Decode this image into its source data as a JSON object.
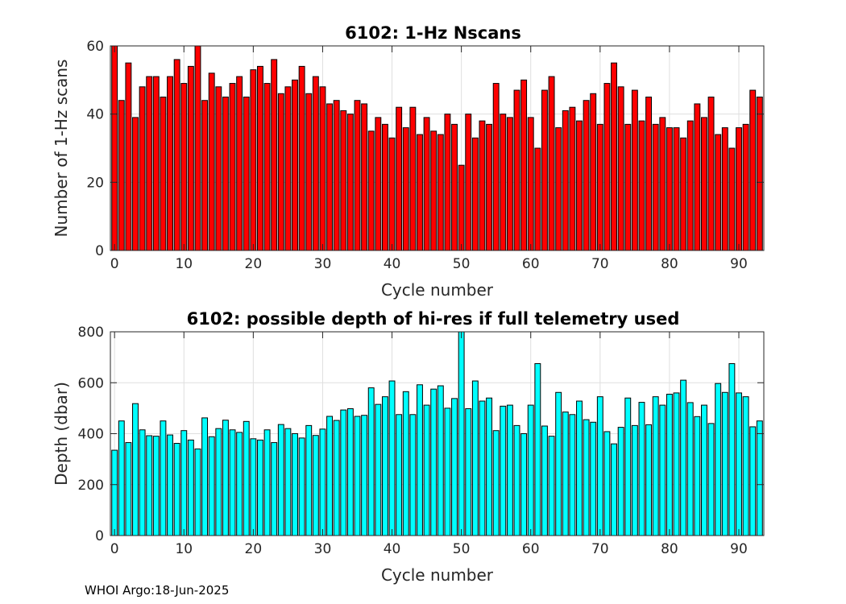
{
  "footer": "WHOI Argo:18-Jun-2025",
  "chart_data": [
    {
      "type": "bar",
      "title": "6102: 1-Hz Nscans",
      "xlabel": "Cycle number",
      "ylabel": "Number of 1-Hz scans",
      "color": "#ff0000",
      "xlim": [
        -0.6,
        93.6
      ],
      "ylim": [
        0,
        60
      ],
      "xticks": [
        0,
        10,
        20,
        30,
        40,
        50,
        60,
        70,
        80,
        90
      ],
      "yticks": [
        0,
        20,
        40,
        60
      ],
      "grid": true,
      "x_start": 0,
      "values": [
        60,
        44,
        55,
        39,
        48,
        51,
        51,
        45,
        51,
        56,
        49,
        54,
        60,
        44,
        52,
        48,
        45,
        49,
        51,
        45,
        53,
        54,
        49,
        56,
        46,
        48,
        50,
        54,
        46,
        51,
        48,
        43,
        44,
        41,
        40,
        44,
        43,
        35,
        39,
        37,
        33,
        42,
        36,
        42,
        34,
        39,
        35,
        34,
        40,
        37,
        25,
        40,
        33,
        38,
        37,
        49,
        40,
        39,
        47,
        50,
        39,
        30,
        47,
        51,
        36,
        41,
        42,
        38,
        44,
        46,
        37,
        49,
        55,
        48,
        37,
        47,
        38,
        45,
        37,
        39,
        36,
        36,
        33,
        38,
        43,
        39,
        45,
        34,
        36,
        30,
        36,
        37,
        47,
        45
      ]
    },
    {
      "type": "bar",
      "title": "6102: possible depth of hi-res if full telemetry used",
      "xlabel": "Cycle number",
      "ylabel": "Depth (dbar)",
      "color": "#00ffff",
      "xlim": [
        -0.6,
        93.6
      ],
      "ylim": [
        0,
        800
      ],
      "xticks": [
        0,
        10,
        20,
        30,
        40,
        50,
        60,
        70,
        80,
        90
      ],
      "yticks": [
        0,
        200,
        400,
        600,
        800
      ],
      "grid": true,
      "x_start": 0,
      "values": [
        335,
        450,
        365,
        518,
        415,
        392,
        390,
        450,
        395,
        362,
        412,
        375,
        340,
        462,
        388,
        420,
        453,
        415,
        405,
        448,
        380,
        375,
        415,
        365,
        436,
        420,
        400,
        383,
        432,
        393,
        418,
        468,
        452,
        493,
        498,
        468,
        472,
        580,
        515,
        545,
        607,
        475,
        565,
        475,
        592,
        512,
        575,
        588,
        500,
        538,
        800,
        498,
        607,
        528,
        540,
        412,
        508,
        512,
        432,
        400,
        512,
        675,
        430,
        390,
        562,
        485,
        475,
        528,
        455,
        445,
        545,
        408,
        360,
        425,
        540,
        432,
        523,
        435,
        545,
        512,
        555,
        560,
        610,
        522,
        467,
        512,
        440,
        597,
        562,
        675,
        560,
        545,
        427,
        450
      ]
    }
  ]
}
